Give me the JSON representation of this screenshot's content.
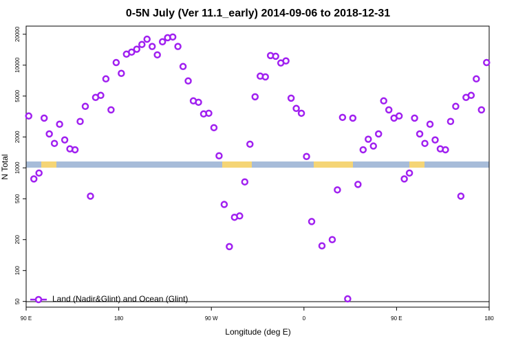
{
  "chart_data": {
    "type": "scatter",
    "title": "0-5N July (Ver 11.1_early)   2014-09-06 to 2018-12-31",
    "x_label": "Longitude (deg E)",
    "y_label": "N Total",
    "xlim": [
      90,
      540
    ],
    "ylim": [
      44,
      24000
    ],
    "ylog": true,
    "xticks": [
      {
        "value": 90,
        "label": "90 E"
      },
      180,
      {
        "value": 270,
        "label": "90 W"
      },
      {
        "value": 360,
        "label": "0"
      },
      {
        "value": 450,
        "label": "90 E"
      },
      {
        "value": 540,
        "label": "180"
      }
    ],
    "yticks": [
      50,
      100,
      200,
      500,
      1000,
      2000,
      5000,
      10000,
      20000
    ],
    "legend": "bottom-left",
    "series": [
      {
        "name": "Land (Nadir&Glint) and Ocean (Glint)",
        "color": "#a020f0",
        "x": [
          92.5,
          97.5,
          102.5,
          107.5,
          112.5,
          117.5,
          122.5,
          127.5,
          132.5,
          137.5,
          142.5,
          147.5,
          152.5,
          157.5,
          162.5,
          167.5,
          172.5,
          177.5,
          182.5,
          187.5,
          192.5,
          197.5,
          202.5,
          207.5,
          212.5,
          217.5,
          222.5,
          227.5,
          232.5,
          237.5,
          242.5,
          247.5,
          252.5,
          257.5,
          262.5,
          267.5,
          272.5,
          277.5,
          282.5,
          287.5,
          292.5,
          297.5,
          302.5,
          307.5,
          312.5,
          317.5,
          322.5,
          327.5,
          332.5,
          337.5,
          342.5,
          347.5,
          352.5,
          357.5,
          362.5,
          367.5,
          377.5,
          387.5,
          392.5,
          397.5,
          402.5,
          407.5,
          412.5,
          417.5,
          422.5,
          427.5,
          432.5,
          437.5,
          442.5,
          447.5,
          452.5,
          457.5,
          462.5,
          467.5,
          472.5,
          477.5,
          482.5,
          487.5,
          492.5,
          497.5,
          502.5,
          507.5,
          512.5,
          517.5,
          522.5,
          527.5,
          532.5,
          537.5
        ],
        "values": [
          3200,
          780,
          890,
          3050,
          2140,
          1730,
          2660,
          1870,
          1530,
          1500,
          2830,
          3970,
          530,
          4850,
          5080,
          7350,
          3670,
          10600,
          8320,
          12800,
          13400,
          14300,
          15900,
          17900,
          15200,
          12600,
          16900,
          18500,
          18800,
          15200,
          9700,
          7020,
          4490,
          4350,
          3350,
          3400,
          2460,
          1310,
          440,
          171,
          330,
          340,
          730,
          1700,
          4920,
          7820,
          7690,
          12400,
          12200,
          10500,
          11000,
          4770,
          3790,
          3400,
          1290,
          300,
          174,
          200,
          610,
          3100,
          53,
          3050,
          690,
          1500,
          1900,
          1630,
          2140,
          4490,
          3670,
          3050,
          3200,
          780,
          890,
          3050,
          2140,
          1730,
          2660,
          1870,
          1530,
          1500,
          2830,
          3970,
          530,
          4850,
          5080,
          7350,
          3670,
          10600
        ]
      }
    ]
  }
}
